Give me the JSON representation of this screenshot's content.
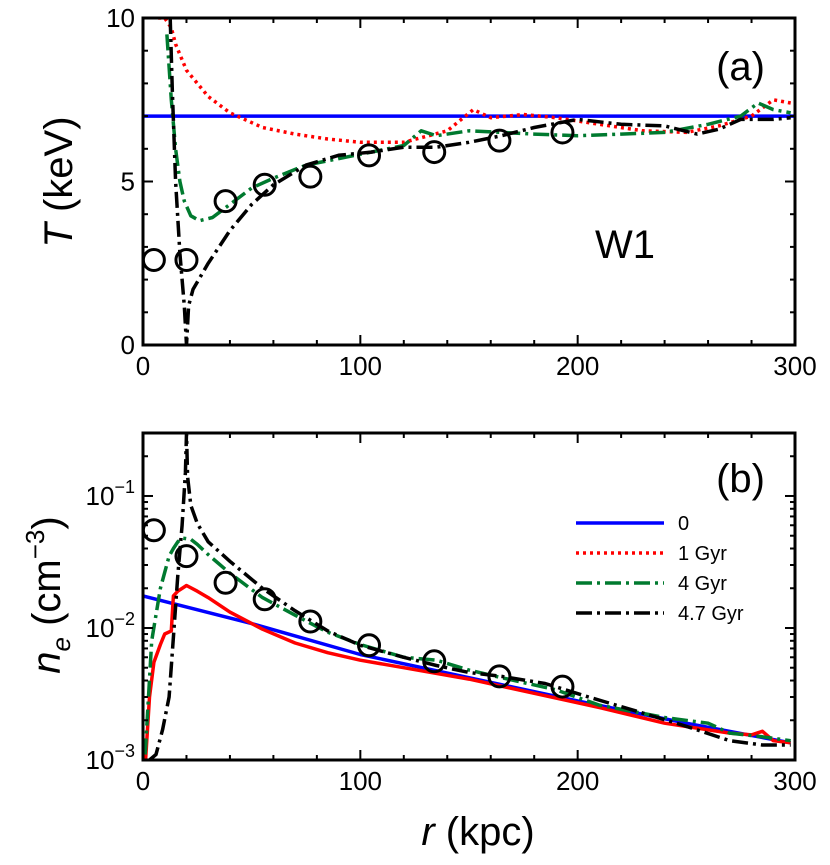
{
  "chart_data": [
    {
      "panel_label": "(a)",
      "type": "line",
      "annotation": "W1",
      "ylabel": "T (keV)",
      "ylabel_parts": {
        "symbol": "T",
        "rest": " (keV)"
      },
      "xlim": [
        0,
        300
      ],
      "ylim": [
        0,
        10
      ],
      "xticks": [
        "0",
        "100",
        "200",
        "300"
      ],
      "yticks": [
        "0",
        "5",
        "10"
      ],
      "series": [
        {
          "key": "s0",
          "color": "#0000ff",
          "dash": "",
          "x": [
            0,
            300
          ],
          "y": [
            7.0,
            7.0
          ]
        },
        {
          "key": "s1",
          "color": "#ff0000",
          "dash": "3,4",
          "x": [
            7,
            10,
            13,
            15,
            20,
            30,
            40,
            55,
            70,
            85,
            100,
            120,
            140,
            152,
            160,
            175,
            190,
            210,
            230,
            250,
            265,
            280,
            290,
            298
          ],
          "y": [
            10,
            10,
            9.7,
            9.2,
            8.4,
            7.6,
            7.1,
            6.65,
            6.45,
            6.3,
            6.2,
            6.2,
            6.55,
            7.2,
            6.95,
            7.05,
            6.95,
            6.75,
            6.55,
            6.5,
            6.7,
            7.0,
            7.5,
            7.4
          ]
        },
        {
          "key": "s2",
          "color": "#007a2f",
          "dash": "16,5,3,5",
          "x": [
            11,
            13,
            15,
            17,
            19,
            22,
            26,
            32,
            40,
            50,
            60,
            75,
            90,
            105,
            120,
            128,
            135,
            150,
            165,
            180,
            200,
            220,
            240,
            260,
            275,
            283,
            290,
            298
          ],
          "y": [
            9.5,
            7.5,
            6.0,
            5.0,
            4.4,
            3.95,
            3.8,
            3.9,
            4.3,
            4.8,
            5.1,
            5.5,
            5.7,
            5.9,
            6.1,
            6.55,
            6.4,
            6.55,
            6.5,
            6.45,
            6.4,
            6.45,
            6.5,
            6.75,
            7.0,
            7.4,
            7.2,
            7.1
          ]
        },
        {
          "key": "s3",
          "color": "#000000",
          "dash": "16,5,3,5",
          "x": [
            12.5,
            13.5,
            15,
            17,
            19,
            20,
            21,
            23,
            30,
            40,
            50,
            60,
            75,
            90,
            105,
            120,
            135,
            150,
            165,
            180,
            200,
            220,
            240,
            255,
            265,
            275,
            290,
            298
          ],
          "y": [
            10,
            7.8,
            5.0,
            2.8,
            1.2,
            0,
            1.2,
            1.7,
            2.5,
            3.5,
            4.3,
            4.9,
            5.5,
            5.8,
            5.9,
            6.05,
            6.05,
            6.2,
            6.4,
            6.65,
            6.9,
            6.75,
            6.7,
            6.45,
            6.6,
            6.9,
            6.9,
            6.95
          ]
        }
      ],
      "markers": {
        "x": [
          5,
          20,
          38,
          56,
          77,
          104,
          134,
          164,
          193
        ],
        "y": [
          2.6,
          2.6,
          4.4,
          4.9,
          5.15,
          5.8,
          5.9,
          6.25,
          6.5
        ]
      }
    },
    {
      "panel_label": "(b)",
      "type": "line",
      "yscale": "log",
      "ylabel": "n_e (cm^-3)",
      "ylabel_parts": {
        "base": "n",
        "sub": "e",
        "rest": " (cm",
        "sup": "−3",
        "close": ")"
      },
      "xlabel": "r (kpc)",
      "xlabel_parts": {
        "symbol": "r",
        "rest": " (kpc)"
      },
      "xlim": [
        0,
        300
      ],
      "ylim": [
        0.001,
        0.3
      ],
      "xticks": [
        "0",
        "100",
        "200",
        "300"
      ],
      "yticks": [
        {
          "value": 0.001,
          "base": "10",
          "exp": "−3"
        },
        {
          "value": 0.01,
          "base": "10",
          "exp": "−2"
        },
        {
          "value": 0.1,
          "base": "10",
          "exp": "−1"
        }
      ],
      "legend": {
        "placement": "right",
        "entries": [
          {
            "label": "0",
            "color": "#0000ff",
            "dash": ""
          },
          {
            "label": "1 Gyr",
            "color": "#ff0000",
            "dash": "3,4"
          },
          {
            "label": "4 Gyr",
            "color": "#007a2f",
            "dash": "16,5,3,5"
          },
          {
            "label": "4.7 Gyr",
            "color": "#000000",
            "dash": "16,5,3,5"
          }
        ]
      },
      "series": [
        {
          "key": "s0",
          "color": "#0000ff",
          "dash": "",
          "x": [
            0,
            50,
            100,
            150,
            200,
            250,
            298
          ],
          "y": [
            0.0175,
            0.0108,
            0.0063,
            0.0042,
            0.0028,
            0.0019,
            0.00135
          ]
        },
        {
          "key": "s1",
          "color": "#ff0000",
          "dash": "",
          "x": [
            1,
            3,
            5,
            8,
            10,
            13,
            14,
            16,
            20,
            25,
            30,
            40,
            55,
            70,
            85,
            100,
            120,
            150,
            180,
            210,
            240,
            270,
            280,
            285,
            290,
            298
          ],
          "y": [
            0.0009,
            0.003,
            0.0055,
            0.0075,
            0.009,
            0.0095,
            0.0175,
            0.019,
            0.021,
            0.019,
            0.017,
            0.0132,
            0.0098,
            0.0077,
            0.0065,
            0.0057,
            0.005,
            0.0041,
            0.0032,
            0.0025,
            0.0019,
            0.0016,
            0.00155,
            0.00165,
            0.0014,
            0.00135
          ]
        },
        {
          "key": "s2",
          "color": "#007a2f",
          "dash": "16,5,3,5",
          "x": [
            1,
            4,
            8,
            12,
            14,
            16,
            18,
            22,
            25,
            30,
            40,
            55,
            70,
            85,
            100,
            120,
            135,
            150,
            165,
            190,
            210,
            240,
            260,
            270,
            285,
            298
          ],
          "y": [
            0.0011,
            0.008,
            0.02,
            0.035,
            0.04,
            0.045,
            0.048,
            0.047,
            0.043,
            0.036,
            0.026,
            0.017,
            0.0125,
            0.0093,
            0.0075,
            0.006,
            0.0057,
            0.0048,
            0.0042,
            0.0034,
            0.0026,
            0.0021,
            0.0019,
            0.0016,
            0.0015,
            0.0014
          ]
        },
        {
          "key": "s3",
          "color": "#000000",
          "dash": "16,5,3,5",
          "x": [
            3,
            6,
            9,
            12,
            14,
            16,
            18,
            19.5,
            20,
            20.5,
            22,
            25,
            30,
            40,
            55,
            70,
            85,
            100,
            120,
            135,
            150,
            165,
            185,
            205,
            225,
            250,
            270,
            285,
            298
          ],
          "y": [
            0.001,
            0.0011,
            0.0017,
            0.003,
            0.0085,
            0.025,
            0.06,
            0.15,
            0.3,
            0.14,
            0.085,
            0.062,
            0.045,
            0.032,
            0.02,
            0.0135,
            0.0095,
            0.0074,
            0.006,
            0.0052,
            0.0046,
            0.0043,
            0.0038,
            0.003,
            0.0024,
            0.0018,
            0.0014,
            0.0013,
            0.0013
          ]
        }
      ],
      "markers": {
        "x": [
          5,
          20,
          38,
          56,
          77,
          104,
          134,
          164,
          193
        ],
        "y": [
          0.055,
          0.035,
          0.022,
          0.0165,
          0.0112,
          0.0074,
          0.0056,
          0.0043,
          0.0036
        ]
      }
    }
  ]
}
